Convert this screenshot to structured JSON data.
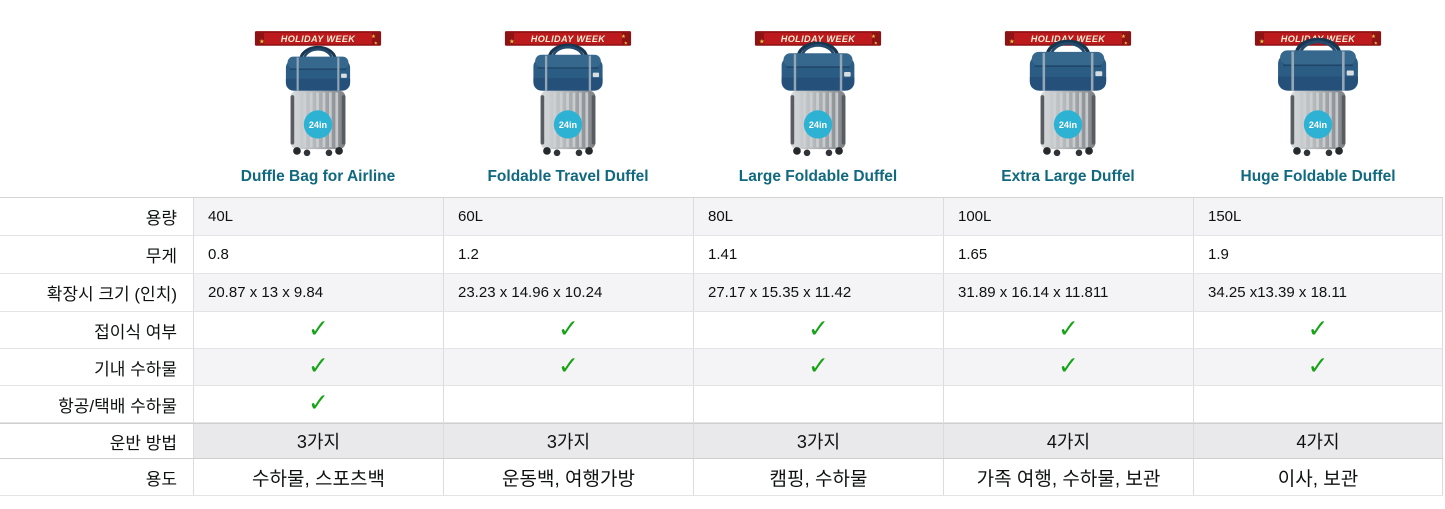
{
  "banner_label": "HOLIDAY WEEK",
  "badge_label": "24in",
  "check_glyph": "✓",
  "colors": {
    "title_teal": "#11697f",
    "check_green": "#17a317",
    "banner_red": "#bc1a1d",
    "banner_dark_red": "#8f1215",
    "badge_cyan": "#2eb2d4",
    "zebra_gray": "#f4f4f6",
    "band_gray": "#e9e9eb",
    "duffel_blue": "#2b5c84",
    "suitcase_gray": "#b3b7ba"
  },
  "products": [
    {
      "title": "Duffle Bag for Airline"
    },
    {
      "title": "Foldable Travel Duffel"
    },
    {
      "title": "Large Foldable Duffel"
    },
    {
      "title": "Extra Large Duffel"
    },
    {
      "title": "Huge Foldable Duffel"
    }
  ],
  "table": {
    "rows": [
      {
        "key": "capacity",
        "label": "용량",
        "type": "text",
        "values": [
          "40L",
          "60L",
          "80L",
          "100L",
          "150L"
        ]
      },
      {
        "key": "weight",
        "label": "무게",
        "type": "text",
        "values": [
          "0.8",
          "1.2",
          "1.41",
          "1.65",
          "1.9"
        ]
      },
      {
        "key": "expanded-size",
        "label": "확장시 크기 (인치)",
        "type": "text",
        "values": [
          "20.87 x 13 x 9.84",
          "23.23 x 14.96 x 10.24",
          "27.17 x 15.35 x 11.42",
          "31.89 x 16.14 x 11.811",
          "34.25 x13.39 x 18.11"
        ]
      },
      {
        "key": "foldable",
        "label": "접이식 여부",
        "type": "check",
        "values": [
          true,
          true,
          true,
          true,
          true
        ]
      },
      {
        "key": "carry-on",
        "label": "기내 수하물",
        "type": "check",
        "values": [
          true,
          true,
          true,
          true,
          true
        ]
      },
      {
        "key": "air-courier",
        "label": "항공/택배 수하물",
        "type": "check",
        "values": [
          true,
          false,
          false,
          false,
          false
        ]
      },
      {
        "key": "carry-methods",
        "label": "운반 방법",
        "type": "center",
        "values": [
          "3가지",
          "3가지",
          "3가지",
          "4가지",
          "4가지"
        ]
      },
      {
        "key": "uses",
        "label": "용도",
        "type": "uses",
        "values": [
          "수하물, 스포츠백",
          "운동백, 여행가방",
          "캠핑, 수하물",
          "가족 여행, 수하물, 보관",
          "이사, 보관"
        ]
      }
    ]
  }
}
